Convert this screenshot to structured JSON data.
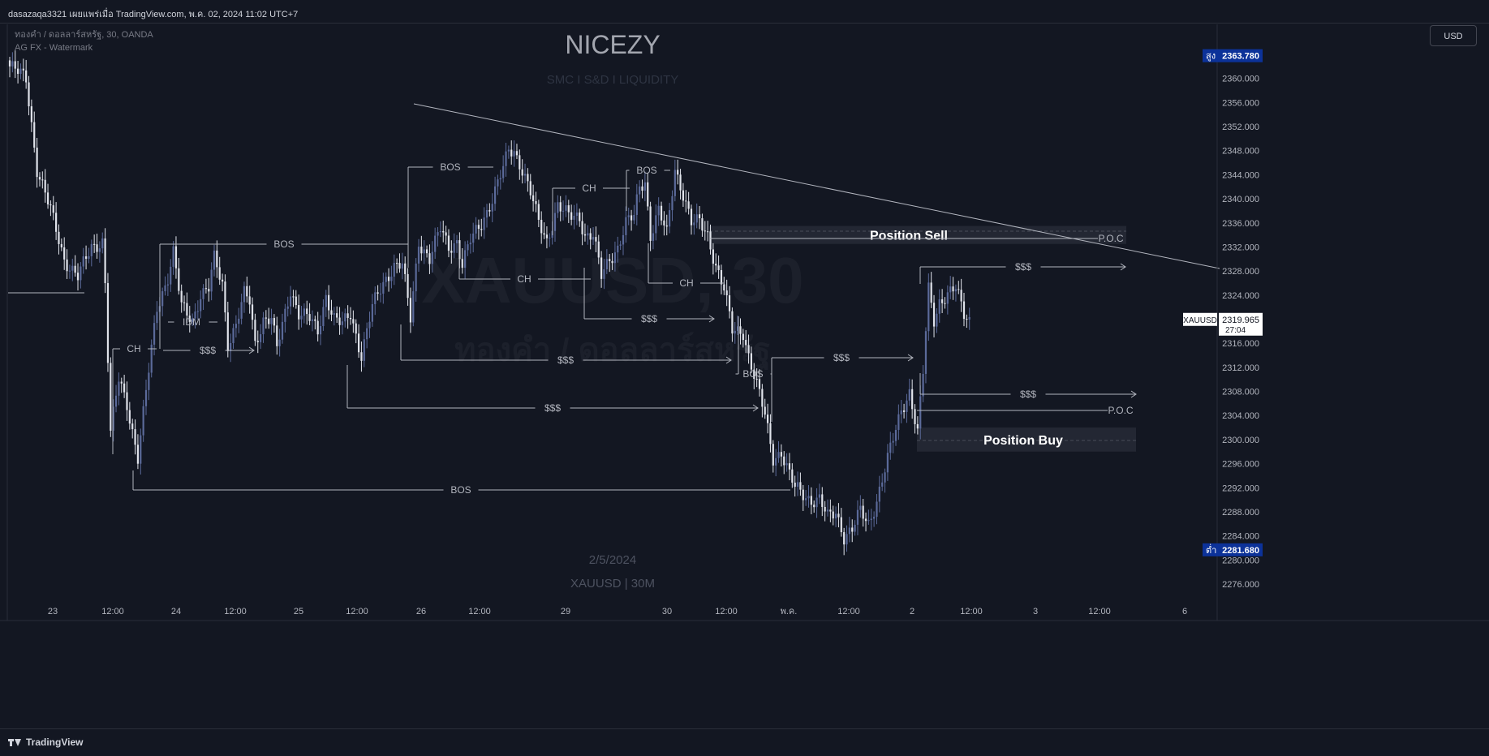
{
  "topbar": {
    "published": "dasazaqa3321 เผยแพร่เมื่อ TradingView.com, พ.ค. 02, 2024 11:02 UTC+7"
  },
  "legend": {
    "line1": "ทองคำ / ดอลลาร์สหรัฐ, 30, OANDA",
    "line2": "AG FX - Watermark"
  },
  "currency_button": "USD",
  "bottombar": {
    "brand": "TradingView"
  },
  "colors": {
    "background": "#131722",
    "candle_up": "#5b6a9a",
    "candle_down": "#e0e3eb",
    "high_badge": "#0c3299",
    "low_badge": "#0c3299",
    "annotation": "#b2b5be"
  },
  "chart_data": {
    "type": "candlestick",
    "symbol": "XAUUSD",
    "interval": "30",
    "watermark": {
      "title": "NICEZY",
      "subtitle": "SMC I S&D I LIQUIDITY",
      "symbol_big": "XAUUSD, 30",
      "name_big": "ทองคำ / ดอลลาร์สหรัฐ",
      "date": "2/5/2024",
      "tf": "XAUUSD | 30M"
    },
    "ylim": [
      2272,
      2366
    ],
    "y_ticks": [
      2276,
      2280,
      2284,
      2288,
      2292,
      2296,
      2300,
      2304,
      2308,
      2312,
      2316,
      2320,
      2324,
      2328,
      2332,
      2336,
      2340,
      2344,
      2348,
      2352,
      2356,
      2360
    ],
    "x_ticks": [
      "23",
      "12:00",
      "24",
      "12:00",
      "25",
      "12:00",
      "26",
      "12:00",
      "29",
      "30",
      "12:00",
      "พ.ค.",
      "12:00",
      "2",
      "12:00",
      "3",
      "12:00",
      "6"
    ],
    "high_label": "สูง",
    "high": "2363.780",
    "low_label": "ต่ำ",
    "low": "2281.680",
    "last_symbol": "XAUUSD",
    "last_price": "2319.965",
    "countdown": "27:04",
    "anchors": [
      [
        0,
        2362
      ],
      [
        6,
        2360
      ],
      [
        10,
        2345
      ],
      [
        15,
        2338
      ],
      [
        20,
        2330
      ],
      [
        25,
        2327
      ],
      [
        30,
        2332
      ],
      [
        34,
        2333
      ],
      [
        35,
        2326
      ],
      [
        37,
        2301
      ],
      [
        40,
        2310
      ],
      [
        43,
        2306
      ],
      [
        47,
        2297
      ],
      [
        52,
        2315
      ],
      [
        54,
        2322
      ],
      [
        58,
        2327
      ],
      [
        60,
        2331
      ],
      [
        63,
        2322
      ],
      [
        67,
        2320
      ],
      [
        70,
        2324
      ],
      [
        73,
        2325
      ],
      [
        75,
        2330
      ],
      [
        78,
        2326
      ],
      [
        80,
        2316
      ],
      [
        83,
        2319
      ],
      [
        86,
        2324
      ],
      [
        88,
        2323
      ],
      [
        90,
        2316
      ],
      [
        93,
        2320
      ],
      [
        96,
        2320
      ],
      [
        98,
        2315
      ],
      [
        103,
        2325
      ],
      [
        106,
        2321
      ],
      [
        110,
        2320
      ],
      [
        113,
        2318
      ],
      [
        116,
        2324
      ],
      [
        119,
        2320
      ],
      [
        122,
        2319
      ],
      [
        125,
        2321
      ],
      [
        129,
        2314
      ],
      [
        133,
        2322
      ],
      [
        137,
        2326
      ],
      [
        141,
        2329
      ],
      [
        144,
        2329
      ],
      [
        147,
        2320
      ],
      [
        150,
        2333
      ],
      [
        154,
        2330
      ],
      [
        158,
        2335
      ],
      [
        161,
        2332
      ],
      [
        164,
        2333
      ],
      [
        166,
        2329
      ],
      [
        169,
        2333
      ],
      [
        173,
        2336
      ],
      [
        177,
        2340
      ],
      [
        181,
        2345
      ],
      [
        183,
        2348
      ],
      [
        185,
        2348
      ],
      [
        188,
        2345
      ],
      [
        191,
        2341
      ],
      [
        194,
        2336
      ],
      [
        197,
        2333
      ],
      [
        201,
        2339
      ],
      [
        205,
        2337
      ],
      [
        209,
        2337
      ],
      [
        211,
        2334
      ],
      [
        214,
        2334
      ],
      [
        217,
        2327
      ],
      [
        220,
        2330
      ],
      [
        223,
        2332
      ],
      [
        226,
        2336
      ],
      [
        229,
        2337
      ],
      [
        231,
        2342
      ],
      [
        233,
        2343
      ],
      [
        235,
        2334
      ],
      [
        238,
        2338
      ],
      [
        241,
        2334
      ],
      [
        244,
        2345
      ],
      [
        247,
        2341
      ],
      [
        250,
        2336
      ],
      [
        253,
        2336
      ],
      [
        256,
        2334
      ],
      [
        259,
        2329
      ],
      [
        262,
        2325
      ],
      [
        265,
        2318
      ],
      [
        269,
        2318
      ],
      [
        271,
        2314
      ],
      [
        274,
        2309
      ],
      [
        277,
        2304
      ],
      [
        280,
        2297
      ],
      [
        283,
        2298
      ],
      [
        286,
        2294
      ],
      [
        288,
        2292
      ],
      [
        291,
        2291
      ],
      [
        294,
        2290
      ],
      [
        297,
        2290
      ],
      [
        300,
        2287
      ],
      [
        303,
        2288
      ],
      [
        306,
        2284
      ],
      [
        309,
        2285
      ],
      [
        312,
        2288
      ],
      [
        315,
        2286
      ],
      [
        318,
        2290
      ],
      [
        321,
        2295
      ],
      [
        324,
        2300
      ],
      [
        327,
        2305
      ],
      [
        330,
        2308
      ],
      [
        333,
        2301
      ],
      [
        335,
        2311
      ],
      [
        337,
        2325
      ],
      [
        339,
        2320
      ],
      [
        341,
        2323
      ],
      [
        344,
        2324
      ],
      [
        347,
        2325
      ],
      [
        350,
        2321
      ],
      [
        352,
        2320
      ]
    ],
    "annotations": [
      {
        "text": "BOS",
        "kind": "level"
      },
      {
        "text": "CH",
        "kind": "level"
      },
      {
        "text": "IDM",
        "kind": "level"
      },
      {
        "text": "$$$",
        "kind": "liquidity"
      },
      {
        "text": "BOS",
        "kind": "level"
      },
      {
        "text": "BOS",
        "kind": "level"
      },
      {
        "text": "CH",
        "kind": "level"
      },
      {
        "text": "CH",
        "kind": "level"
      },
      {
        "text": "CH",
        "kind": "level"
      },
      {
        "text": "$$$",
        "kind": "liquidity"
      },
      {
        "text": "$$$",
        "kind": "liquidity"
      },
      {
        "text": "$$$",
        "kind": "liquidity"
      },
      {
        "text": "BOS",
        "kind": "level"
      },
      {
        "text": "$$$",
        "kind": "liquidity"
      },
      {
        "text": "BOS",
        "kind": "level"
      },
      {
        "text": "$$$",
        "kind": "liquidity"
      },
      {
        "text": "$$$",
        "kind": "liquidity"
      },
      {
        "text": "P.O.C",
        "kind": "poc"
      },
      {
        "text": "P.O.C",
        "kind": "poc"
      }
    ],
    "zones": [
      {
        "label": "Position Sell",
        "from": 2332.5,
        "to": 2335.5
      },
      {
        "label": "Position Buy",
        "from": 2298,
        "to": 2302
      }
    ]
  }
}
